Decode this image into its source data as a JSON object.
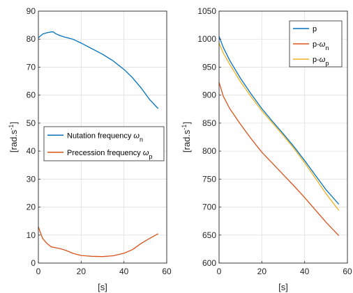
{
  "chart_data": [
    {
      "type": "line",
      "xlabel": "[s]",
      "ylabel_base": "[rad.s",
      "ylabel_sup": "-1",
      "ylabel_end": "]",
      "xlim": [
        0,
        60
      ],
      "ylim": [
        0,
        90
      ],
      "xticks": [
        0,
        20,
        40,
        60
      ],
      "yticks": [
        0,
        10,
        20,
        30,
        40,
        50,
        60,
        70,
        80,
        90
      ],
      "grid": true,
      "legend_position": "middle-left",
      "series": [
        {
          "name": "Nutation frequency ω",
          "name_base": "Nutation frequency ",
          "name_symbol": "ω",
          "name_sub": "n",
          "color": "#0072BD",
          "x": [
            0,
            2,
            4,
            6,
            7,
            8,
            10,
            12,
            16,
            20,
            25,
            30,
            35,
            40,
            44,
            48,
            52,
            56
          ],
          "y": [
            80.5,
            81.8,
            82.3,
            82.6,
            82.6,
            82.0,
            81.3,
            80.8,
            80.0,
            78.6,
            76.6,
            74.6,
            72.2,
            69.2,
            66.2,
            62.6,
            58.4,
            55.2
          ]
        },
        {
          "name": "Precession frequency ω",
          "name_base": "Precession frequency ",
          "name_symbol": "ω",
          "name_sub": "p",
          "color": "#D95319",
          "x": [
            0,
            1,
            2,
            4,
            6,
            8,
            10,
            13,
            16,
            20,
            25,
            30,
            35,
            40,
            44,
            48,
            52,
            56
          ],
          "y": [
            13.0,
            10.8,
            8.8,
            7.0,
            5.8,
            5.5,
            5.2,
            4.5,
            3.5,
            2.7,
            2.4,
            2.3,
            2.6,
            3.5,
            4.8,
            7.0,
            8.8,
            10.5
          ]
        }
      ]
    },
    {
      "type": "line",
      "xlabel": "[s]",
      "ylabel_base": "[rad.s",
      "ylabel_sup": "-1",
      "ylabel_end": "]",
      "xlim": [
        0,
        60
      ],
      "ylim": [
        600,
        1050
      ],
      "xticks": [
        0,
        20,
        40,
        60
      ],
      "yticks": [
        600,
        650,
        700,
        750,
        800,
        850,
        900,
        950,
        1000,
        1050
      ],
      "grid": true,
      "legend_position": "top-right",
      "series": [
        {
          "name": "p",
          "name_base": "p",
          "name_symbol": "",
          "name_sub": "",
          "color": "#0072BD",
          "x": [
            0,
            2,
            5,
            10,
            15,
            20,
            25,
            30,
            35,
            40,
            45,
            50,
            56
          ],
          "y": [
            1005,
            985,
            962,
            930,
            902,
            876,
            853,
            831,
            808,
            783,
            757,
            731,
            705
          ]
        },
        {
          "name": "p-ω",
          "name_base": "p-",
          "name_symbol": "ω",
          "name_sub": "n",
          "color": "#D95319",
          "x": [
            0,
            2,
            5,
            10,
            15,
            20,
            25,
            30,
            35,
            40,
            45,
            50,
            56
          ],
          "y": [
            923,
            898,
            876,
            848,
            822,
            798,
            778,
            758,
            738,
            717,
            695,
            673,
            649
          ]
        },
        {
          "name": "p-ω",
          "name_base": "p-",
          "name_symbol": "ω",
          "name_sub": "p",
          "color": "#EDB120",
          "x": [
            0,
            2,
            5,
            10,
            15,
            20,
            25,
            30,
            35,
            40,
            45,
            50,
            56
          ],
          "y": [
            993,
            975,
            955,
            924,
            897,
            872,
            850,
            828,
            805,
            779,
            752,
            724,
            694
          ]
        }
      ]
    }
  ]
}
